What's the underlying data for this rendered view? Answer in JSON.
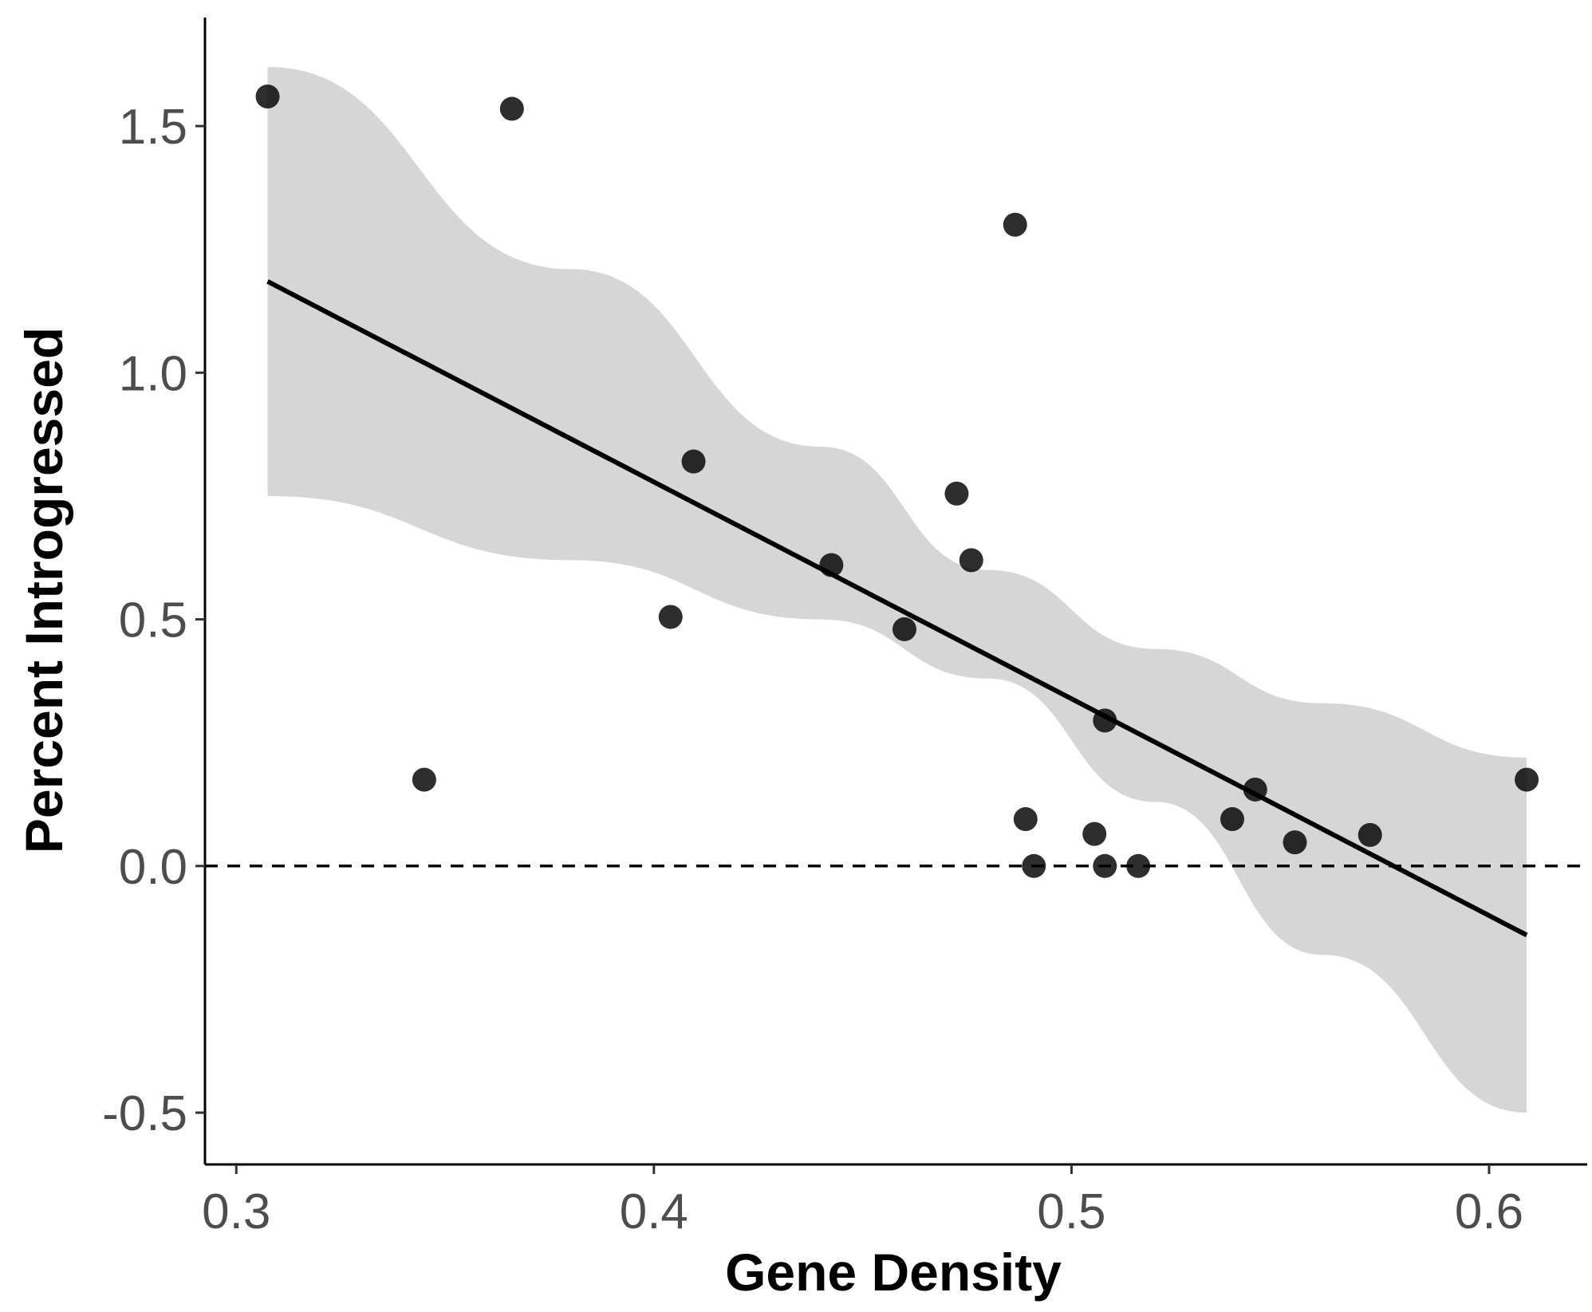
{
  "chart_data": {
    "type": "scatter",
    "title": "",
    "xlabel": "Gene Density",
    "ylabel": "Percent Introgressed",
    "xlim": [
      0.2925,
      0.6235
    ],
    "ylim": [
      -0.605,
      1.72
    ],
    "xticks": [
      0.3,
      0.4,
      0.5,
      0.6
    ],
    "xtick_labels": [
      "0.3",
      "0.4",
      "0.5",
      "0.6"
    ],
    "yticks": [
      -0.5,
      0.0,
      0.5,
      1.0,
      1.5
    ],
    "ytick_labels": [
      "-0.5",
      "0.0",
      "0.5",
      "1.0",
      "1.5"
    ],
    "grid": false,
    "legend": "none",
    "reference_line": {
      "y": 0.0,
      "style": "dashed"
    },
    "fit": {
      "type": "linear",
      "x_range": [
        0.3075,
        0.609
      ],
      "line": [
        [
          0.3075,
          1.185
        ],
        [
          0.609,
          -0.14
        ]
      ],
      "ci_band": [
        {
          "x": 0.3075,
          "lower": 0.75,
          "upper": 1.62
        },
        {
          "x": 0.38,
          "lower": 0.62,
          "upper": 1.21
        },
        {
          "x": 0.44,
          "lower": 0.5,
          "upper": 0.85
        },
        {
          "x": 0.48,
          "lower": 0.38,
          "upper": 0.6
        },
        {
          "x": 0.52,
          "lower": 0.13,
          "upper": 0.44
        },
        {
          "x": 0.56,
          "lower": -0.18,
          "upper": 0.33
        },
        {
          "x": 0.609,
          "lower": -0.5,
          "upper": 0.22
        }
      ]
    },
    "series": [
      {
        "points": [
          {
            "x": 0.3075,
            "y": 1.56
          },
          {
            "x": 0.345,
            "y": 0.175
          },
          {
            "x": 0.366,
            "y": 1.535
          },
          {
            "x": 0.404,
            "y": 0.505
          },
          {
            "x": 0.4095,
            "y": 0.82
          },
          {
            "x": 0.4425,
            "y": 0.61
          },
          {
            "x": 0.46,
            "y": 0.48
          },
          {
            "x": 0.4725,
            "y": 0.755
          },
          {
            "x": 0.476,
            "y": 0.62
          },
          {
            "x": 0.4865,
            "y": 1.3
          },
          {
            "x": 0.489,
            "y": 0.095
          },
          {
            "x": 0.491,
            "y": 0.0
          },
          {
            "x": 0.5055,
            "y": 0.065
          },
          {
            "x": 0.508,
            "y": 0.0
          },
          {
            "x": 0.508,
            "y": 0.295
          },
          {
            "x": 0.516,
            "y": 0.0
          },
          {
            "x": 0.5385,
            "y": 0.095
          },
          {
            "x": 0.544,
            "y": 0.155
          },
          {
            "x": 0.5535,
            "y": 0.048
          },
          {
            "x": 0.5715,
            "y": 0.063
          },
          {
            "x": 0.609,
            "y": 0.175
          }
        ]
      }
    ]
  },
  "colors": {
    "point": "#000000",
    "fit_line": "#000000",
    "ci_band": "#d6d6d6",
    "axis": "#000000",
    "tick_label": "#4d4d4d"
  }
}
